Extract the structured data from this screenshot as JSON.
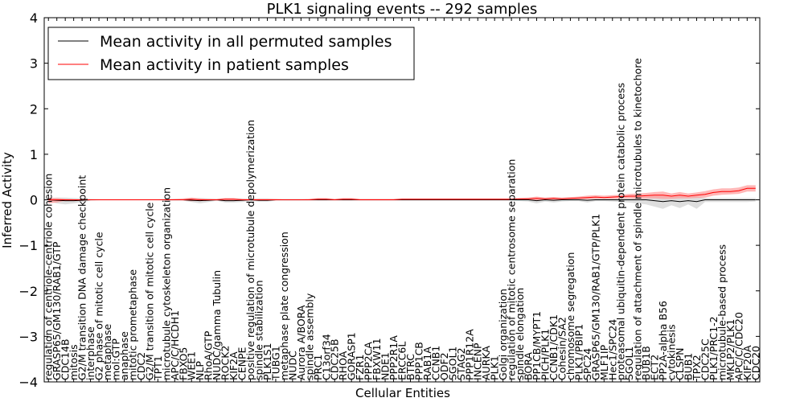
{
  "chart_data": {
    "type": "line",
    "title": "PLK1 signaling events -- 292 samples",
    "xlabel": "Cellular Entities",
    "ylabel": "Inferred Activity",
    "ylim": [
      -4,
      4
    ],
    "yticks": [
      4,
      3,
      2,
      1,
      0,
      -1,
      -2,
      -3,
      -4
    ],
    "ytick_labels": [
      "4",
      "3",
      "2",
      "1",
      "0",
      "−1",
      "−2",
      "−3",
      "−4"
    ],
    "legend_position": "top-left",
    "categories": [
      "regulation of centriole-centriole cohesion",
      "GRASP65/GM130/RAB1/GTP",
      "CDC14B",
      "mitosis",
      "G2/M transition DNA damage checkpoint",
      "interphase",
      "G2 phase of mitotic cell cycle",
      "metaphase",
      "mol:GTP",
      "anaphase",
      "mitotic prometaphase",
      "CDC2",
      "G2/M transition of mitotic cell cycle",
      "TPT1",
      "microtubule cytoskeleton organization",
      "APC/C/HCDH1",
      "FBXO5",
      "WEE1",
      "NLP",
      "RhoA/GTP",
      "NUDC/gamma Tubulin",
      "ROCK2",
      "KIF2A",
      "CENPE",
      "positive regulation of microtubule depolymerization",
      "spindle stabilization",
      "PLK1S1",
      "TUBG1",
      "metaphase plate congression",
      "NUDC",
      "Aurora A/BORA",
      "spindle assembly",
      "PRC1",
      "C13orf34",
      "CDC25B",
      "RHOA",
      "GORASP1",
      "FZR1",
      "PPP2CA",
      "FBXW11",
      "NDE1",
      "PPP2R1A",
      "ERCC6L",
      "BTRC",
      "PPP1CB",
      "RAB1A",
      "CCNB1",
      "ODF2",
      "SGOL1",
      "STAG2",
      "PPP1R12A",
      "INCENP",
      "AURKA",
      "PLK1",
      "Golgi organization",
      "regulation of mitotic centrosome separation",
      "spindle elongation",
      "BORA",
      "PP1CB/MYPT1",
      "PICH/PLK1",
      "CCNB1/CDK1",
      "Cohesin/SA2",
      "chromosome segregation",
      "PLK1/PBIP1",
      "SPC24",
      "GRASP65/GM130/RAB1/GTP/PLK1",
      "MLF1IP",
      "Hec1/SPC24",
      "proteasomal ubiquitin-dependent protein catabolic process",
      "SGOL1",
      "regulation of attachment of spindle microtubules to kinetochore",
      "BUB1B",
      "ECT2",
      "PP2A-alpha B56",
      "cytokinesis",
      "CLSPN",
      "BUB1",
      "TPX2",
      "CDC25C",
      "PLK1/PRC1-2",
      "microtubule-based process",
      "MKLP2/PLK1",
      "APC/C/CDC20",
      "KIF20A",
      "CDC20"
    ],
    "series": [
      {
        "name": "Mean activity in all permuted samples",
        "color": "#000000",
        "band_color": "#c8c8c8",
        "values": [
          0.0,
          -0.01,
          -0.02,
          -0.02,
          -0.01,
          0.0,
          0.0,
          0.0,
          0.0,
          0.0,
          0.0,
          0.0,
          0.0,
          0.0,
          0.0,
          0.0,
          0.0,
          -0.01,
          -0.02,
          -0.01,
          0.0,
          -0.02,
          -0.02,
          -0.01,
          0.0,
          -0.01,
          -0.01,
          0.0,
          0.0,
          0.0,
          0.0,
          0.0,
          0.0,
          0.0,
          0.0,
          0.0,
          0.0,
          0.0,
          0.0,
          0.0,
          0.0,
          0.0,
          0.0,
          0.0,
          0.0,
          0.0,
          0.0,
          0.0,
          0.0,
          0.0,
          0.0,
          0.0,
          0.0,
          0.0,
          0.0,
          0.0,
          0.0,
          0.0,
          -0.02,
          0.0,
          -0.01,
          0.0,
          0.0,
          0.0,
          -0.01,
          0.0,
          0.0,
          0.0,
          0.0,
          0.0,
          0.0,
          0.0,
          -0.02,
          -0.04,
          -0.02,
          -0.04,
          -0.02,
          -0.04,
          0.0,
          0.0,
          0.0,
          0.0,
          0.0,
          0.0,
          0.0
        ],
        "lower": [
          -0.03,
          -0.08,
          -0.1,
          -0.08,
          -0.05,
          -0.02,
          -0.01,
          -0.01,
          -0.01,
          -0.01,
          -0.01,
          -0.01,
          -0.01,
          -0.01,
          -0.02,
          -0.02,
          -0.02,
          -0.05,
          -0.08,
          -0.05,
          -0.02,
          -0.06,
          -0.06,
          -0.05,
          -0.02,
          -0.04,
          -0.04,
          -0.02,
          -0.02,
          -0.02,
          -0.02,
          -0.02,
          -0.02,
          -0.02,
          -0.02,
          -0.02,
          -0.02,
          -0.02,
          -0.02,
          -0.02,
          -0.02,
          -0.02,
          -0.02,
          -0.02,
          -0.02,
          -0.02,
          -0.02,
          -0.02,
          -0.02,
          -0.02,
          -0.02,
          -0.02,
          -0.02,
          -0.02,
          -0.02,
          -0.02,
          -0.03,
          -0.04,
          -0.08,
          -0.04,
          -0.06,
          -0.04,
          -0.03,
          -0.03,
          -0.06,
          -0.03,
          -0.03,
          -0.04,
          -0.05,
          -0.06,
          -0.08,
          -0.1,
          -0.15,
          -0.2,
          -0.12,
          -0.18,
          -0.1,
          -0.2,
          -0.05,
          -0.05,
          -0.05,
          -0.05,
          -0.05,
          -0.05,
          -0.04
        ],
        "upper": [
          0.03,
          0.05,
          0.05,
          0.04,
          0.03,
          0.02,
          0.01,
          0.01,
          0.01,
          0.01,
          0.01,
          0.01,
          0.01,
          0.01,
          0.02,
          0.02,
          0.02,
          0.03,
          0.04,
          0.03,
          0.02,
          0.03,
          0.03,
          0.03,
          0.02,
          0.03,
          0.03,
          0.02,
          0.02,
          0.02,
          0.02,
          0.02,
          0.02,
          0.02,
          0.02,
          0.02,
          0.02,
          0.02,
          0.02,
          0.02,
          0.02,
          0.02,
          0.02,
          0.02,
          0.02,
          0.02,
          0.02,
          0.02,
          0.02,
          0.02,
          0.02,
          0.02,
          0.02,
          0.02,
          0.02,
          0.02,
          0.03,
          0.03,
          0.04,
          0.03,
          0.04,
          0.03,
          0.03,
          0.03,
          0.04,
          0.03,
          0.03,
          0.03,
          0.04,
          0.04,
          0.05,
          0.06,
          0.08,
          0.08,
          0.06,
          0.08,
          0.06,
          0.08,
          0.04,
          0.04,
          0.04,
          0.04,
          0.04,
          0.04,
          0.04
        ]
      },
      {
        "name": "Mean activity in patient samples",
        "color": "#ff0000",
        "band_color": "#ff9999",
        "values": [
          0.0,
          0.0,
          0.0,
          0.0,
          0.0,
          0.0,
          0.0,
          0.0,
          0.0,
          0.0,
          0.0,
          0.0,
          0.0,
          0.0,
          0.0,
          0.0,
          0.0,
          0.01,
          0.0,
          0.0,
          0.0,
          0.01,
          0.01,
          0.0,
          0.0,
          0.0,
          0.0,
          0.0,
          0.0,
          0.0,
          0.0,
          0.0,
          0.01,
          0.01,
          0.0,
          0.01,
          0.01,
          0.0,
          0.0,
          0.0,
          0.0,
          0.0,
          0.01,
          0.01,
          0.01,
          0.01,
          0.01,
          0.01,
          0.01,
          0.01,
          0.01,
          0.01,
          0.01,
          0.01,
          0.01,
          0.01,
          0.02,
          0.02,
          0.03,
          0.02,
          0.03,
          0.02,
          0.03,
          0.04,
          0.05,
          0.06,
          0.05,
          0.06,
          0.07,
          0.08,
          0.08,
          0.09,
          0.1,
          0.1,
          0.08,
          0.1,
          0.08,
          0.1,
          0.12,
          0.16,
          0.18,
          0.18,
          0.2,
          0.25,
          0.25
        ],
        "lower": [
          -0.08,
          -0.06,
          -0.02,
          -0.01,
          0.0,
          0.0,
          0.0,
          0.0,
          0.0,
          0.0,
          0.0,
          0.0,
          0.0,
          0.0,
          0.0,
          0.0,
          -0.01,
          -0.03,
          -0.02,
          -0.01,
          -0.01,
          -0.02,
          -0.02,
          -0.01,
          -0.01,
          -0.01,
          -0.01,
          -0.01,
          0.0,
          0.0,
          0.0,
          0.0,
          -0.01,
          -0.01,
          0.0,
          -0.01,
          -0.01,
          0.0,
          0.0,
          0.0,
          0.0,
          0.0,
          0.0,
          0.0,
          0.0,
          0.0,
          0.0,
          0.0,
          0.0,
          0.0,
          0.0,
          0.0,
          0.0,
          0.0,
          0.0,
          0.0,
          0.0,
          0.0,
          -0.01,
          0.0,
          0.0,
          0.0,
          0.0,
          0.01,
          0.01,
          0.02,
          0.02,
          0.02,
          0.03,
          0.03,
          0.02,
          0.03,
          0.03,
          0.02,
          0.02,
          0.03,
          0.03,
          0.04,
          0.05,
          0.09,
          0.11,
          0.12,
          0.13,
          0.18,
          0.18
        ],
        "upper": [
          0.05,
          0.04,
          0.02,
          0.01,
          0.01,
          0.01,
          0.01,
          0.01,
          0.01,
          0.01,
          0.01,
          0.01,
          0.01,
          0.01,
          0.01,
          0.02,
          0.03,
          0.05,
          0.03,
          0.02,
          0.02,
          0.04,
          0.04,
          0.02,
          0.02,
          0.02,
          0.02,
          0.02,
          0.01,
          0.01,
          0.01,
          0.02,
          0.04,
          0.04,
          0.02,
          0.04,
          0.04,
          0.02,
          0.02,
          0.02,
          0.02,
          0.02,
          0.03,
          0.03,
          0.03,
          0.03,
          0.03,
          0.03,
          0.03,
          0.03,
          0.03,
          0.03,
          0.03,
          0.03,
          0.03,
          0.03,
          0.04,
          0.05,
          0.07,
          0.05,
          0.06,
          0.05,
          0.06,
          0.07,
          0.09,
          0.1,
          0.09,
          0.1,
          0.11,
          0.13,
          0.14,
          0.15,
          0.17,
          0.18,
          0.14,
          0.17,
          0.14,
          0.16,
          0.19,
          0.23,
          0.25,
          0.25,
          0.27,
          0.32,
          0.32
        ]
      }
    ]
  }
}
